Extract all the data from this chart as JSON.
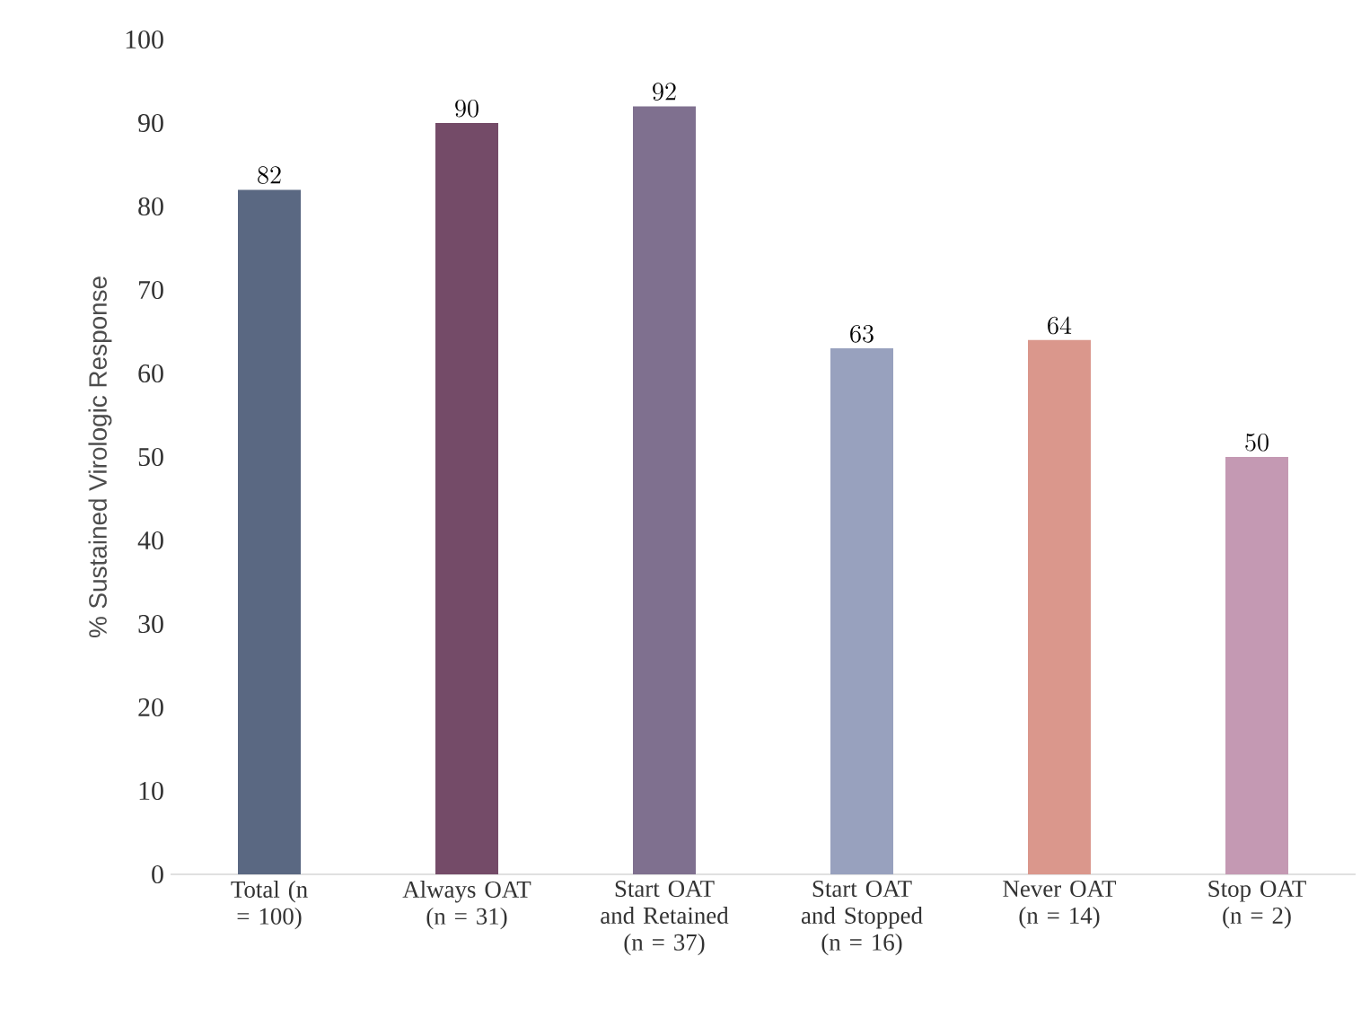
{
  "chart_data": {
    "type": "bar",
    "ylabel": "% Sustained Virologic Response",
    "categories": [
      "Total (n = 100)",
      "Always OAT (n = 31)",
      "Start OAT and Retained (n = 37)",
      "Start OAT and Stopped (n = 16)",
      "Never OAT (n = 14)",
      "Stop OAT (n = 2)"
    ],
    "values": [
      82,
      90,
      92,
      63,
      64,
      50
    ],
    "colors": [
      "#5a6882",
      "#744b68",
      "#7f708f",
      "#98a1be",
      "#da978c",
      "#c499b3"
    ],
    "ylim": [
      0,
      100
    ],
    "yticks": [
      0,
      10,
      20,
      30,
      40,
      50,
      60,
      70,
      80,
      90,
      100
    ],
    "data_labels": true
  }
}
